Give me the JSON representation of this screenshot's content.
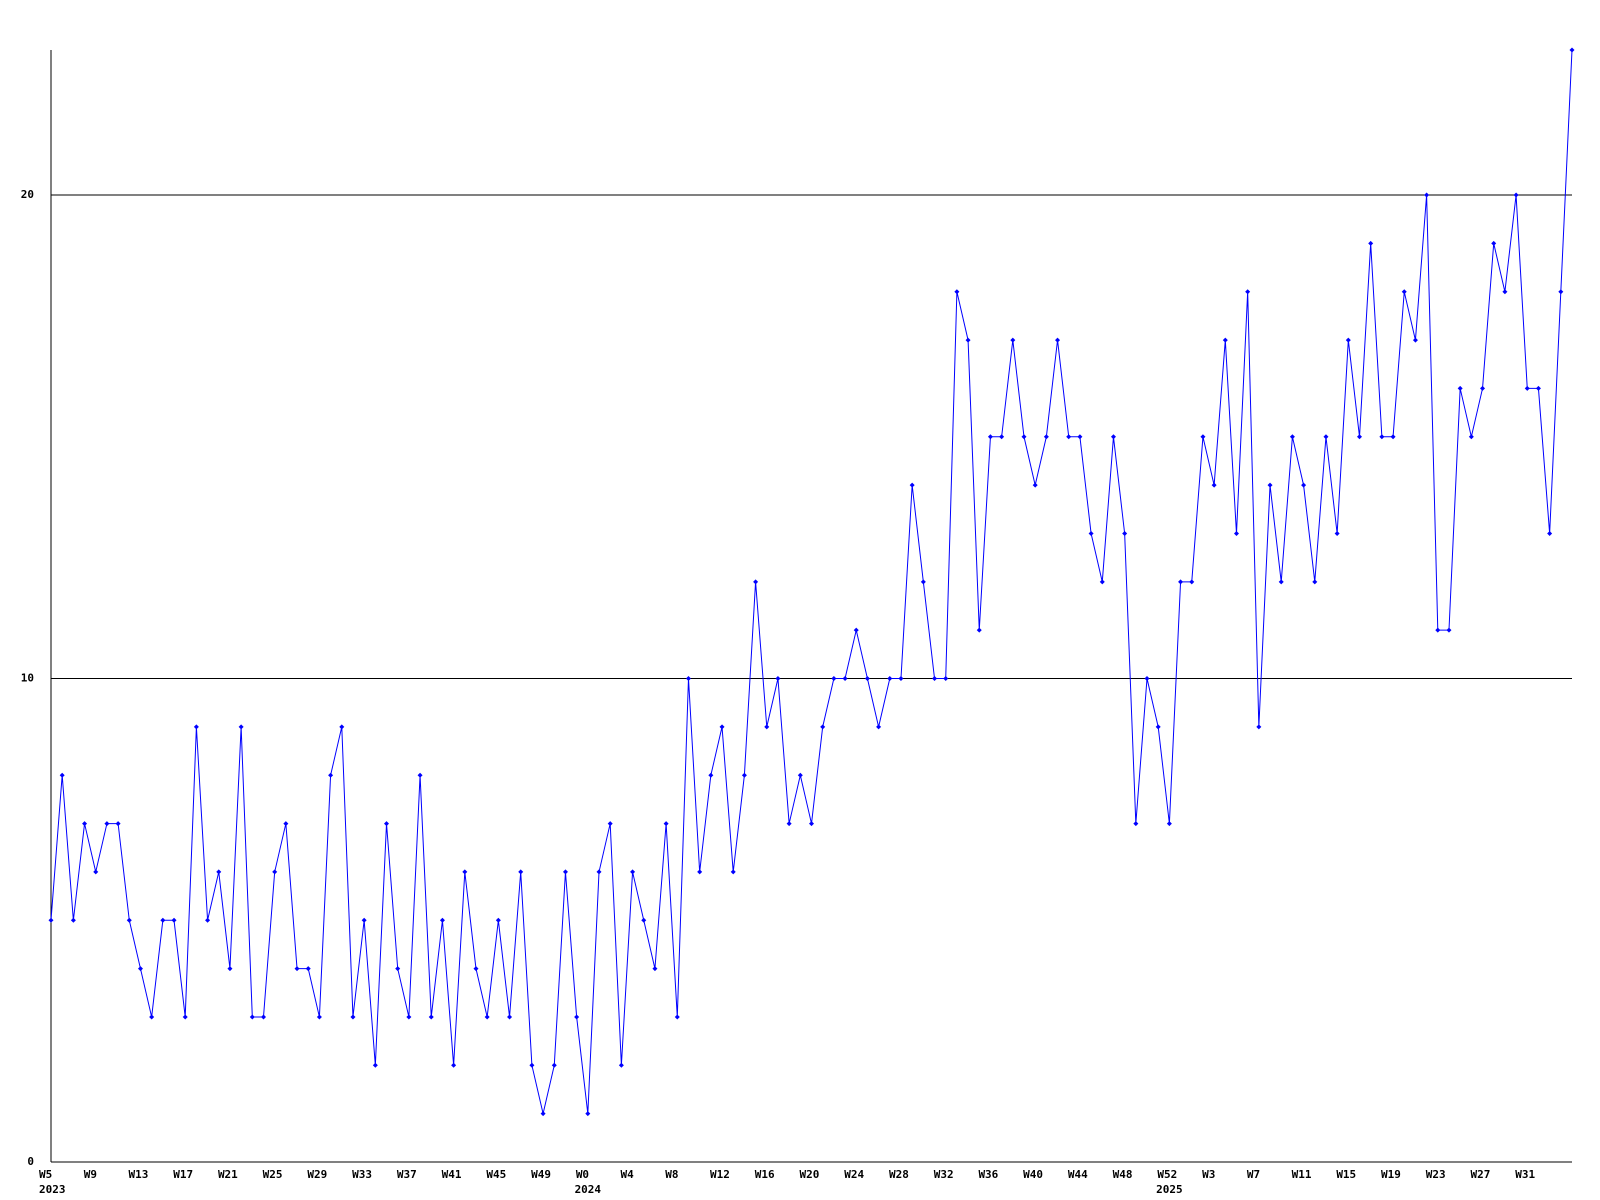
{
  "chart_data": {
    "type": "line",
    "color": "#0000ff",
    "grid": true,
    "categories": [
      "W5",
      null,
      null,
      null,
      "W9",
      null,
      null,
      null,
      "W13",
      null,
      null,
      null,
      "W17",
      null,
      null,
      null,
      "W21",
      null,
      null,
      null,
      "W25",
      null,
      null,
      null,
      "W29",
      null,
      null,
      null,
      "W33",
      null,
      null,
      null,
      "W37",
      null,
      null,
      null,
      "W41",
      null,
      null,
      null,
      "W45",
      null,
      null,
      null,
      "W49",
      null,
      null,
      null,
      "W0",
      null,
      null,
      null,
      "W4",
      null,
      null,
      null,
      "W8",
      null,
      null,
      null,
      "W12",
      null,
      null,
      null,
      "W16",
      null,
      null,
      null,
      "W20",
      null,
      null,
      null,
      "W24",
      null,
      null,
      null,
      "W28",
      null,
      null,
      null,
      "W32",
      null,
      null,
      null,
      "W36",
      null,
      null,
      null,
      "W40",
      null,
      null,
      null,
      "W44",
      null,
      null,
      null,
      "W48",
      null,
      null,
      null,
      "W52",
      null,
      null,
      null,
      "W3",
      null,
      null,
      null,
      "W7",
      null,
      null,
      null,
      "W11",
      null,
      null,
      null,
      "W15",
      null,
      null,
      null,
      "W19",
      null,
      null,
      null,
      "W23",
      null,
      null,
      null,
      "W27",
      null,
      null,
      null,
      "W31",
      null,
      null,
      null,
      null
    ],
    "categories2": [
      "2023",
      null,
      null,
      null,
      null,
      null,
      null,
      null,
      null,
      null,
      null,
      null,
      null,
      null,
      null,
      null,
      null,
      null,
      null,
      null,
      null,
      null,
      null,
      null,
      null,
      null,
      null,
      null,
      null,
      null,
      null,
      null,
      null,
      null,
      null,
      null,
      null,
      null,
      null,
      null,
      null,
      null,
      null,
      null,
      null,
      null,
      null,
      null,
      "2024",
      null,
      null,
      null,
      null,
      null,
      null,
      null,
      null,
      null,
      null,
      null,
      null,
      null,
      null,
      null,
      null,
      null,
      null,
      null,
      null,
      null,
      null,
      null,
      null,
      null,
      null,
      null,
      null,
      null,
      null,
      null,
      null,
      null,
      null,
      null,
      null,
      null,
      null,
      null,
      null,
      null,
      null,
      null,
      null,
      null,
      null,
      null,
      null,
      null,
      null,
      null,
      "2025",
      null,
      null,
      null,
      null,
      null,
      null,
      null,
      null,
      null,
      null,
      null,
      null,
      null,
      null,
      null,
      null,
      null,
      null,
      null,
      null,
      null,
      null,
      null,
      null,
      null,
      null,
      null,
      null,
      null,
      null,
      null,
      null,
      null,
      null
    ],
    "values": [
      5,
      8,
      5,
      7,
      6,
      7,
      7,
      5,
      4,
      3,
      5,
      5,
      3,
      9,
      5,
      6,
      4,
      9,
      3,
      3,
      6,
      7,
      4,
      4,
      3,
      8,
      9,
      3,
      5,
      2,
      7,
      4,
      3,
      8,
      3,
      5,
      2,
      6,
      4,
      3,
      5,
      3,
      6,
      2,
      1,
      2,
      6,
      3,
      1,
      6,
      7,
      2,
      6,
      5,
      4,
      7,
      3,
      10,
      6,
      8,
      9,
      6,
      8,
      12,
      9,
      10,
      7,
      8,
      7,
      9,
      10,
      10,
      11,
      10,
      9,
      10,
      10,
      14,
      12,
      10,
      10,
      18,
      17,
      11,
      15,
      15,
      17,
      15,
      14,
      15,
      17,
      15,
      15,
      13,
      12,
      15,
      13,
      7,
      10,
      9,
      7,
      12,
      12,
      15,
      14,
      17,
      13,
      18,
      9,
      14,
      12,
      15,
      14,
      12,
      15,
      13,
      17,
      15,
      19,
      15,
      15,
      18,
      17,
      20,
      11,
      11,
      16,
      15,
      16,
      19,
      18,
      20,
      16,
      16,
      13,
      18,
      23
    ],
    "ylim": [
      0,
      23
    ],
    "yticks": [
      0,
      10,
      20
    ]
  }
}
